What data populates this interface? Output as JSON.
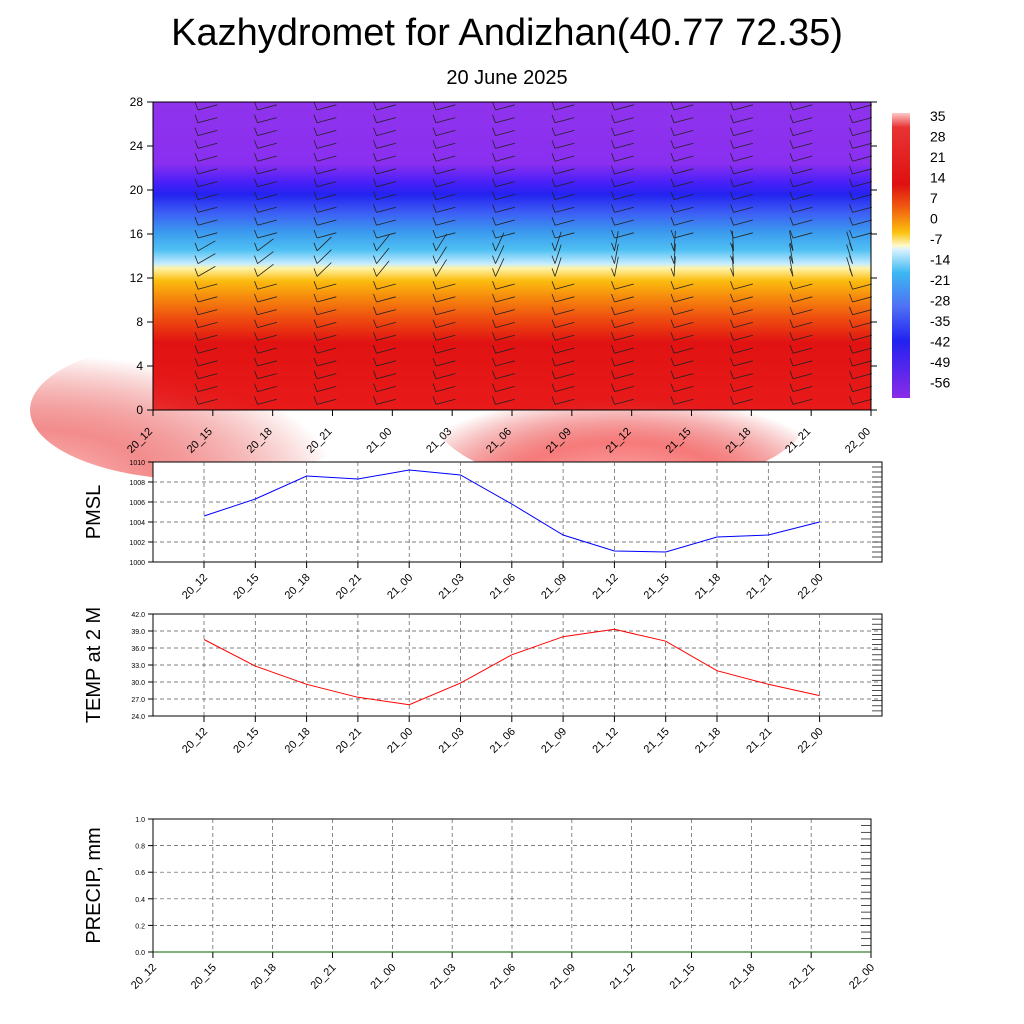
{
  "title": "Kazhydromet for Andizhan(40.77 72.35)",
  "subtitle": "20 June 2025",
  "chart_data": [
    {
      "type": "heatmap",
      "name": "temperature-cross-section",
      "xlabel": "",
      "ylabel": "",
      "y_ticks": [
        0,
        4,
        8,
        12,
        16,
        20,
        24,
        28
      ],
      "ylim": [
        0,
        28
      ],
      "x_ticks": [
        "20_12",
        "20_15",
        "20_18",
        "20_21",
        "21_00",
        "21_03",
        "21_06",
        "21_09",
        "21_12",
        "21_15",
        "21_18",
        "21_21",
        "22_00"
      ],
      "colorbar_labels": [
        "35",
        "28",
        "21",
        "14",
        "7",
        "0",
        "-7",
        "-14",
        "-21",
        "-28",
        "-35",
        "-42",
        "-49",
        "-56"
      ],
      "colors": [
        "#ffb8b8",
        "#e62828",
        "#e01010",
        "#f06010",
        "#f9a20e",
        "#fbe60f",
        "#fff7b0",
        "#bfe9ff",
        "#30b0ee",
        "#4f7bf5",
        "#2727f2",
        "#6a2ffa",
        "#8a2be8"
      ]
    },
    {
      "type": "line",
      "name": "PMSL",
      "ylabel": "PMSL",
      "ylim": [
        1000,
        1010
      ],
      "y_ticks": [
        "1000",
        "1002",
        "1004",
        "1006",
        "1008",
        "1010"
      ],
      "x_ticks": [
        "20_12",
        "20_15",
        "20_18",
        "20_21",
        "21_00",
        "21_03",
        "21_06",
        "21_09",
        "21_12",
        "21_15",
        "21_18",
        "21_21",
        "22_00"
      ],
      "values": [
        1004.6,
        1006.3,
        1008.6,
        1008.3,
        1009.2,
        1008.7,
        1005.8,
        1002.7,
        1001.1,
        1001.0,
        1002.5,
        1002.7,
        1004.0
      ],
      "color": "#0000ff"
    },
    {
      "type": "line",
      "name": "TEMP at 2 M",
      "ylabel": "TEMP at 2 M",
      "ylim": [
        24,
        42
      ],
      "y_ticks": [
        "24.0",
        "27.0",
        "30.0",
        "33.0",
        "36.0",
        "39.0",
        "42.0"
      ],
      "x_ticks": [
        "20_12",
        "20_15",
        "20_18",
        "20_21",
        "21_00",
        "21_03",
        "21_06",
        "21_09",
        "21_12",
        "21_15",
        "21_18",
        "21_21",
        "22_00"
      ],
      "values": [
        37.5,
        32.8,
        29.6,
        27.3,
        26.0,
        29.8,
        34.8,
        38.0,
        39.3,
        37.2,
        32.0,
        29.6,
        27.6
      ],
      "color": "#ff0000"
    },
    {
      "type": "line",
      "name": "PRECIP, mm",
      "ylabel": "PRECIP, mm",
      "ylim": [
        0,
        1
      ],
      "y_ticks": [
        "0.0",
        "0.2",
        "0.4",
        "0.6",
        "0.8",
        "1.0"
      ],
      "x_ticks": [
        "20_12",
        "20_15",
        "20_18",
        "20_21",
        "21_00",
        "21_03",
        "21_06",
        "21_09",
        "21_12",
        "21_15",
        "21_18",
        "21_21",
        "22_00"
      ],
      "values": [
        0,
        0,
        0,
        0,
        0,
        0,
        0,
        0,
        0,
        0,
        0,
        0,
        0
      ],
      "color": "#006400"
    }
  ]
}
